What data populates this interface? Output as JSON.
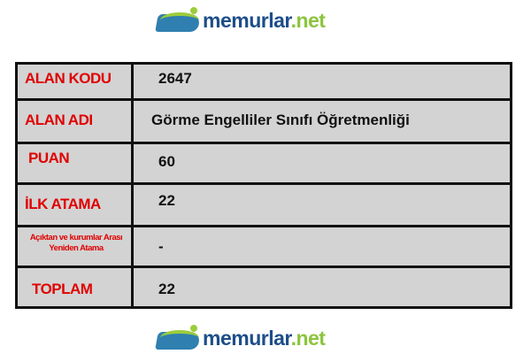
{
  "logo": {
    "text_main": "memurlar",
    "text_ext": ".net"
  },
  "rows": [
    {
      "label": "ALAN KODU",
      "value": "2647"
    },
    {
      "label": "ALAN ADI",
      "value": "Görme Engelliler Sınıfı Öğretmenliği"
    },
    {
      "label": "PUAN",
      "value": "60"
    },
    {
      "label": "İLK ATAMA",
      "value": "22"
    },
    {
      "label": "Açıktan ve kurumlar Arası Yeniden Atama",
      "value": "-"
    },
    {
      "label": "TOPLAM",
      "value": "22"
    }
  ]
}
